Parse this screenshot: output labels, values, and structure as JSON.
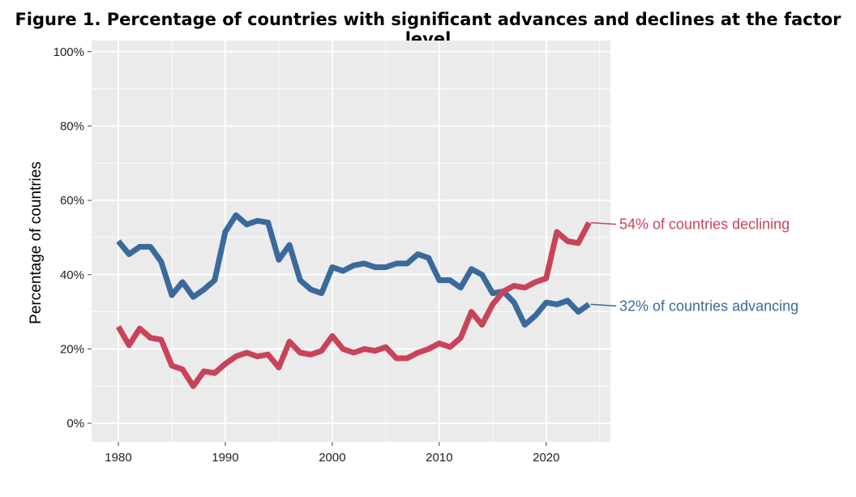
{
  "title": "Figure 1. Percentage of countries with significant advances and declines at the factor level",
  "chart_data": {
    "type": "line",
    "ylabel": "Percentage of countries",
    "xlabel": "",
    "xlim": [
      1977.5,
      2026
    ],
    "ylim": [
      -5,
      103
    ],
    "x_ticks": [
      1980,
      1990,
      2000,
      2010,
      2020
    ],
    "y_ticks": [
      0,
      20,
      40,
      60,
      80,
      100
    ],
    "y_tick_labels": [
      "0%",
      "20%",
      "40%",
      "60%",
      "80%",
      "100%"
    ],
    "grid": true,
    "x": [
      1980,
      1981,
      1982,
      1983,
      1984,
      1985,
      1986,
      1987,
      1988,
      1989,
      1990,
      1991,
      1992,
      1993,
      1994,
      1995,
      1996,
      1997,
      1998,
      1999,
      2000,
      2001,
      2002,
      2003,
      2004,
      2005,
      2006,
      2007,
      2008,
      2009,
      2010,
      2011,
      2012,
      2013,
      2014,
      2015,
      2016,
      2017,
      2018,
      2019,
      2020,
      2021,
      2022,
      2023,
      2024
    ],
    "series": [
      {
        "color": "#3a6a9b",
        "values": [
          49,
          45.5,
          47.5,
          47.5,
          43.5,
          34.5,
          38,
          34,
          36,
          38.5,
          51.5,
          56,
          53.5,
          54.5,
          54,
          44,
          48,
          38.5,
          36,
          35,
          42,
          41,
          42.5,
          43,
          42,
          42,
          43,
          43,
          45.5,
          44.5,
          38.5,
          38.5,
          36.5,
          41.5,
          40,
          35,
          35.5,
          32.5,
          26.5,
          29,
          32.5,
          32,
          33,
          30,
          32
        ]
      },
      {
        "color": "#c8435a",
        "values": [
          26,
          21,
          25.5,
          23,
          22.5,
          15.5,
          14.5,
          10,
          14,
          13.5,
          16,
          18,
          19,
          18,
          18.5,
          15,
          22,
          19,
          18.5,
          19.5,
          23.5,
          20,
          19,
          20,
          19.5,
          20.5,
          17.5,
          17.5,
          19,
          20,
          21.5,
          20.5,
          23,
          30,
          26.5,
          32,
          35.5,
          37,
          36.5,
          38,
          39,
          51.5,
          49,
          48.5,
          54
        ]
      }
    ],
    "annotations": [
      {
        "text": "54% of countries declining",
        "color": "#c8435a"
      },
      {
        "text": "32% of countries advancing",
        "color": "#3a6a9b"
      }
    ]
  }
}
